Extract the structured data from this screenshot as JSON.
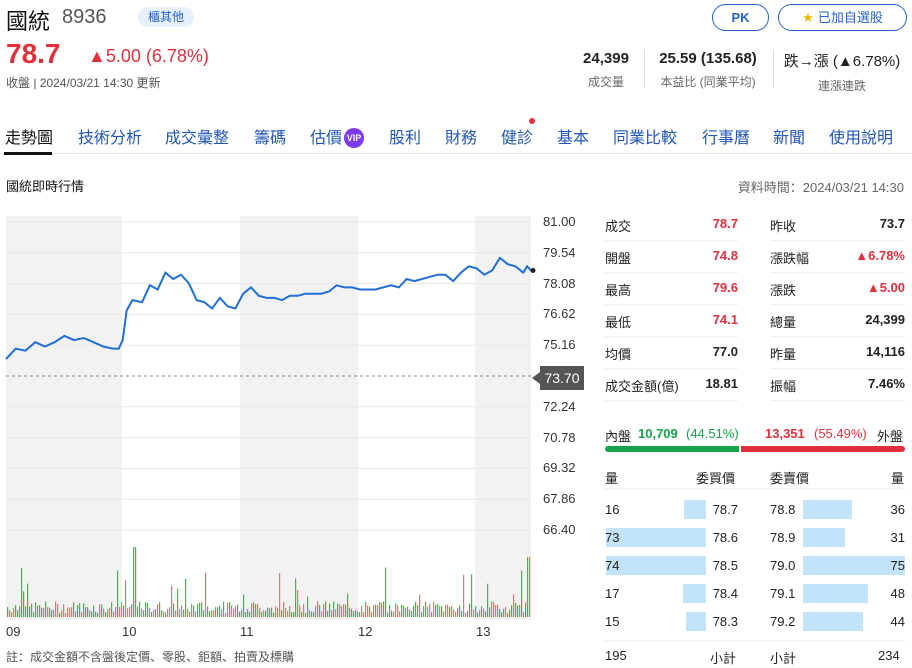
{
  "stock": {
    "name": "國統",
    "code": "8936",
    "industry_tag": "櫃其他",
    "price": "78.7",
    "change": "5.00 (6.78%)",
    "status": "收盤 | 2024/03/21 14:30 更新"
  },
  "actions": {
    "pk_label": "PK",
    "watch_label": "已加自選股"
  },
  "stats": [
    {
      "value": "24,399",
      "label": "成交量"
    },
    {
      "value": "25.59 (135.68)",
      "label": "本益比 (同業平均)"
    },
    {
      "value": "跌→漲 (▲6.78%)",
      "label": "連漲連跌"
    }
  ],
  "tabs": [
    "走勢圖",
    "技術分析",
    "成交彙整",
    "籌碼",
    "估價",
    "股利",
    "財務",
    "健診",
    "基本",
    "同業比較",
    "行事曆",
    "新聞",
    "使用說明"
  ],
  "tab_vip": "VIP",
  "section_title": "國統即時行情",
  "data_time": "資料時間：2024/03/21 14:30",
  "colors": {
    "up": "#e0303c",
    "down": "#16a34a",
    "line": "#1f6fd6",
    "link": "#2156b8",
    "bar_blue": "#c3e3fb"
  },
  "chart_data": {
    "type": "line",
    "x_ticks": [
      "09",
      "10",
      "11",
      "12",
      "13"
    ],
    "y_ticks": [
      "81.00",
      "79.54",
      "78.08",
      "76.62",
      "75.16",
      "73.70",
      "72.24",
      "70.78",
      "69.32",
      "67.86",
      "66.40"
    ],
    "ylim": [
      66.4,
      81.0
    ],
    "reference_price": "73.70",
    "reference_value": 73.7,
    "time_range": [
      "09:00",
      "13:30"
    ],
    "series": [
      {
        "values": [
          [
            0,
            74.5
          ],
          [
            5,
            75.0
          ],
          [
            10,
            74.9
          ],
          [
            15,
            75.3
          ],
          [
            20,
            75.1
          ],
          [
            25,
            75.3
          ],
          [
            30,
            75.6
          ],
          [
            35,
            75.4
          ],
          [
            40,
            75.5
          ],
          [
            45,
            75.3
          ],
          [
            50,
            75.1
          ],
          [
            55,
            75.0
          ],
          [
            58,
            75.0
          ],
          [
            60,
            75.4
          ],
          [
            62,
            76.8
          ],
          [
            65,
            77.3
          ],
          [
            70,
            77.2
          ],
          [
            74,
            78.0
          ],
          [
            78,
            77.8
          ],
          [
            82,
            78.6
          ],
          [
            86,
            78.3
          ],
          [
            90,
            78.5
          ],
          [
            94,
            78.1
          ],
          [
            98,
            77.3
          ],
          [
            102,
            77.2
          ],
          [
            106,
            76.9
          ],
          [
            110,
            77.4
          ],
          [
            114,
            77.0
          ],
          [
            118,
            76.9
          ],
          [
            122,
            77.6
          ],
          [
            126,
            77.9
          ],
          [
            130,
            77.5
          ],
          [
            134,
            77.4
          ],
          [
            138,
            77.4
          ],
          [
            142,
            77.3
          ],
          [
            146,
            77.5
          ],
          [
            150,
            77.5
          ],
          [
            154,
            77.6
          ],
          [
            158,
            77.6
          ],
          [
            162,
            77.6
          ],
          [
            166,
            77.7
          ],
          [
            170,
            78.0
          ],
          [
            174,
            77.9
          ],
          [
            178,
            77.9
          ],
          [
            182,
            77.8
          ],
          [
            186,
            77.8
          ],
          [
            190,
            77.8
          ],
          [
            194,
            77.9
          ],
          [
            198,
            78.0
          ],
          [
            202,
            77.9
          ],
          [
            206,
            78.3
          ],
          [
            210,
            78.2
          ],
          [
            214,
            78.3
          ],
          [
            218,
            78.4
          ],
          [
            222,
            78.5
          ],
          [
            226,
            78.5
          ],
          [
            230,
            78.2
          ],
          [
            234,
            78.6
          ],
          [
            238,
            78.9
          ],
          [
            242,
            78.8
          ],
          [
            246,
            78.5
          ],
          [
            250,
            78.7
          ],
          [
            254,
            79.3
          ],
          [
            258,
            79.0
          ],
          [
            262,
            78.9
          ],
          [
            266,
            78.6
          ],
          [
            268,
            78.9
          ],
          [
            270,
            78.7
          ]
        ]
      }
    ]
  },
  "footnote": "註：成交金額不含盤後定價、零股、鉅額、拍賣及標購",
  "quote": {
    "left": [
      {
        "label": "成交",
        "value": "78.7",
        "color": "up"
      },
      {
        "label": "開盤",
        "value": "74.8",
        "color": "up"
      },
      {
        "label": "最高",
        "value": "79.6",
        "color": "up"
      },
      {
        "label": "最低",
        "value": "74.1",
        "color": "up"
      },
      {
        "label": "均價",
        "value": "77.0",
        "color": "plain"
      },
      {
        "label": "成交金額(億)",
        "value": "18.81",
        "color": "plain"
      }
    ],
    "right": [
      {
        "label": "昨收",
        "value": "73.7",
        "color": "plain"
      },
      {
        "label": "漲跌幅",
        "value": "▲6.78%",
        "color": "up"
      },
      {
        "label": "漲跌",
        "value": "▲5.00",
        "color": "up"
      },
      {
        "label": "總量",
        "value": "24,399",
        "color": "plain"
      },
      {
        "label": "昨量",
        "value": "14,116",
        "color": "plain"
      },
      {
        "label": "振幅",
        "value": "7.46%",
        "color": "plain"
      }
    ]
  },
  "inner_outer": {
    "inner_label": "內盤",
    "inner_value": "10,709",
    "inner_pct": "(44.51%)",
    "inner_ratio": 0.4451,
    "outer_value": "13,351",
    "outer_pct": "(55.49%)",
    "outer_label": "外盤"
  },
  "order_book": {
    "bid_headers": [
      "量",
      "委買價"
    ],
    "ask_headers": [
      "委賣價",
      "量"
    ],
    "bids": [
      {
        "vol": "16",
        "price": "78.7",
        "ratio": 0.22
      },
      {
        "vol": "73",
        "price": "78.6",
        "ratio": 1.0
      },
      {
        "vol": "74",
        "price": "78.5",
        "ratio": 1.0
      },
      {
        "vol": "17",
        "price": "78.4",
        "ratio": 0.23
      },
      {
        "vol": "15",
        "price": "78.3",
        "ratio": 0.2
      }
    ],
    "asks": [
      {
        "price": "78.8",
        "vol": "36",
        "ratio": 0.48
      },
      {
        "price": "78.9",
        "vol": "31",
        "ratio": 0.41
      },
      {
        "price": "79.0",
        "vol": "75",
        "ratio": 1.0
      },
      {
        "price": "79.1",
        "vol": "48",
        "ratio": 0.64
      },
      {
        "price": "79.2",
        "vol": "44",
        "ratio": 0.59
      }
    ],
    "bid_total": "195",
    "bid_total_label": "小計",
    "ask_total_label": "小計",
    "ask_total": "234"
  }
}
